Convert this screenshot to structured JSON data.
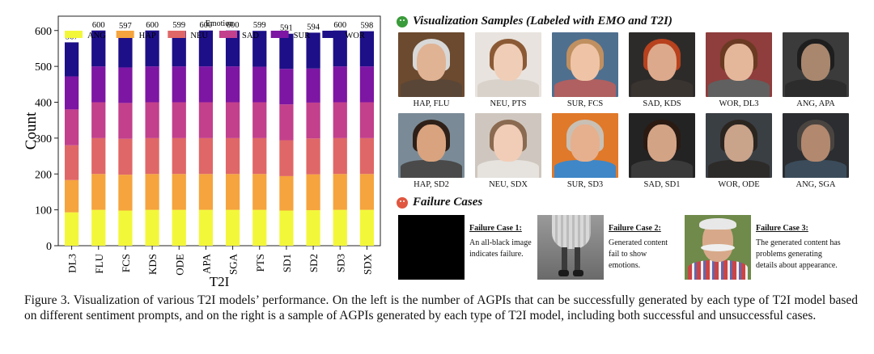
{
  "chart_data": {
    "type": "bar",
    "stacked": true,
    "legend_title": "Emotion",
    "legend_position": "top",
    "series": [
      {
        "name": "ANG",
        "color": "#f3f73a"
      },
      {
        "name": "HAP",
        "color": "#f5a43e"
      },
      {
        "name": "NEU",
        "color": "#e06767"
      },
      {
        "name": "SAD",
        "color": "#c2408c"
      },
      {
        "name": "SUR",
        "color": "#7d16a3"
      },
      {
        "name": "WOR",
        "color": "#1d0f87"
      }
    ],
    "categories": [
      "DL3",
      "FLU",
      "FCS",
      "KDS",
      "ODE",
      "APA",
      "SGA",
      "PTS",
      "SD1",
      "SD2",
      "SD3",
      "SDX"
    ],
    "totals": [
      567,
      600,
      597,
      600,
      599,
      600,
      600,
      599,
      591,
      594,
      600,
      598
    ],
    "stacked_values": {
      "ANG": [
        93,
        100,
        98,
        100,
        100,
        100,
        100,
        100,
        98,
        99,
        100,
        100
      ],
      "HAP": [
        90,
        100,
        100,
        100,
        100,
        100,
        100,
        100,
        96,
        100,
        100,
        100
      ],
      "NEU": [
        97,
        100,
        100,
        100,
        100,
        100,
        100,
        100,
        100,
        100,
        100,
        100
      ],
      "SAD": [
        100,
        100,
        100,
        100,
        100,
        100,
        100,
        100,
        100,
        100,
        100,
        100
      ],
      "SUR": [
        92,
        100,
        99,
        100,
        100,
        100,
        100,
        99,
        99,
        95,
        100,
        100
      ],
      "WOR": [
        95,
        100,
        100,
        100,
        99,
        100,
        100,
        100,
        98,
        100,
        100,
        98
      ]
    },
    "xlabel": "T2I",
    "ylabel": "Count",
    "ylim": [
      0,
      640
    ],
    "yticks": [
      0,
      100,
      200,
      300,
      400,
      500,
      600
    ],
    "grid": false
  },
  "samples_title": "Visualization Samples (Labeled with EMO and T2I)",
  "samples": [
    {
      "label": "HAP, FLU",
      "bg": "#6b4a2f",
      "skin": "#e0b394",
      "hair": "#d8d8d8",
      "cloth": "#5a4636"
    },
    {
      "label": "NEU, PTS",
      "bg": "#e8e3de",
      "skin": "#f0cdb6",
      "hair": "#8b5a35",
      "cloth": "#d9d2cb"
    },
    {
      "label": "SUR, FCS",
      "bg": "#4f6f8f",
      "skin": "#efc4a6",
      "hair": "#c09060",
      "cloth": "#b06060"
    },
    {
      "label": "SAD, KDS",
      "bg": "#2d2b2a",
      "skin": "#dca98c",
      "hair": "#b8411e",
      "cloth": "#3a3431"
    },
    {
      "label": "WOR, DL3",
      "bg": "#8f3d3d",
      "skin": "#e4b79b",
      "hair": "#6a3a22",
      "cloth": "#606060"
    },
    {
      "label": "ANG, APA",
      "bg": "#3b3b3b",
      "skin": "#a8876e",
      "hair": "#1e1e1e",
      "cloth": "#2c2c2c"
    },
    {
      "label": "HAP, SD2",
      "bg": "#7a8b97",
      "skin": "#d9a37f",
      "hair": "#2e2018",
      "cloth": "#4a4a4a"
    },
    {
      "label": "NEU, SDX",
      "bg": "#cfc7bf",
      "skin": "#f1cdb7",
      "hair": "#8a6a50",
      "cloth": "#e6e2de"
    },
    {
      "label": "SUR, SD3",
      "bg": "#e0792a",
      "skin": "#e6b08e",
      "hair": "#c9c0b5",
      "cloth": "#3f87c7"
    },
    {
      "label": "SAD, SD1",
      "bg": "#232323",
      "skin": "#d3a386",
      "hair": "#2a1a12",
      "cloth": "#3a3a3a"
    },
    {
      "label": "WOR, ODE",
      "bg": "#3a3f44",
      "skin": "#c9a38a",
      "hair": "#2b2520",
      "cloth": "#2d2b29"
    },
    {
      "label": "ANG, SGA",
      "bg": "#2b2d30",
      "skin": "#b2886e",
      "hair": "#4a4440",
      "cloth": "#3b4b5a"
    }
  ],
  "failure_title": "Failure Cases",
  "failures": [
    {
      "title": "Failure Case 1:",
      "text": "An all-black image indicates failure."
    },
    {
      "title": "Failure Case 2:",
      "text": "Generated content fail to show emotions."
    },
    {
      "title": "Failure Case 3:",
      "text": "The generated content has problems generating details about appearance."
    }
  ],
  "caption": "Figure 3.  Visualization of various T2I models’ performance.  On the left is the number of AGPIs that can be successfully generated by each type of T2I model based on different sentiment prompts, and on the right is a sample of AGPIs generated by each type of T2I model, including both successful and unsuccessful cases."
}
